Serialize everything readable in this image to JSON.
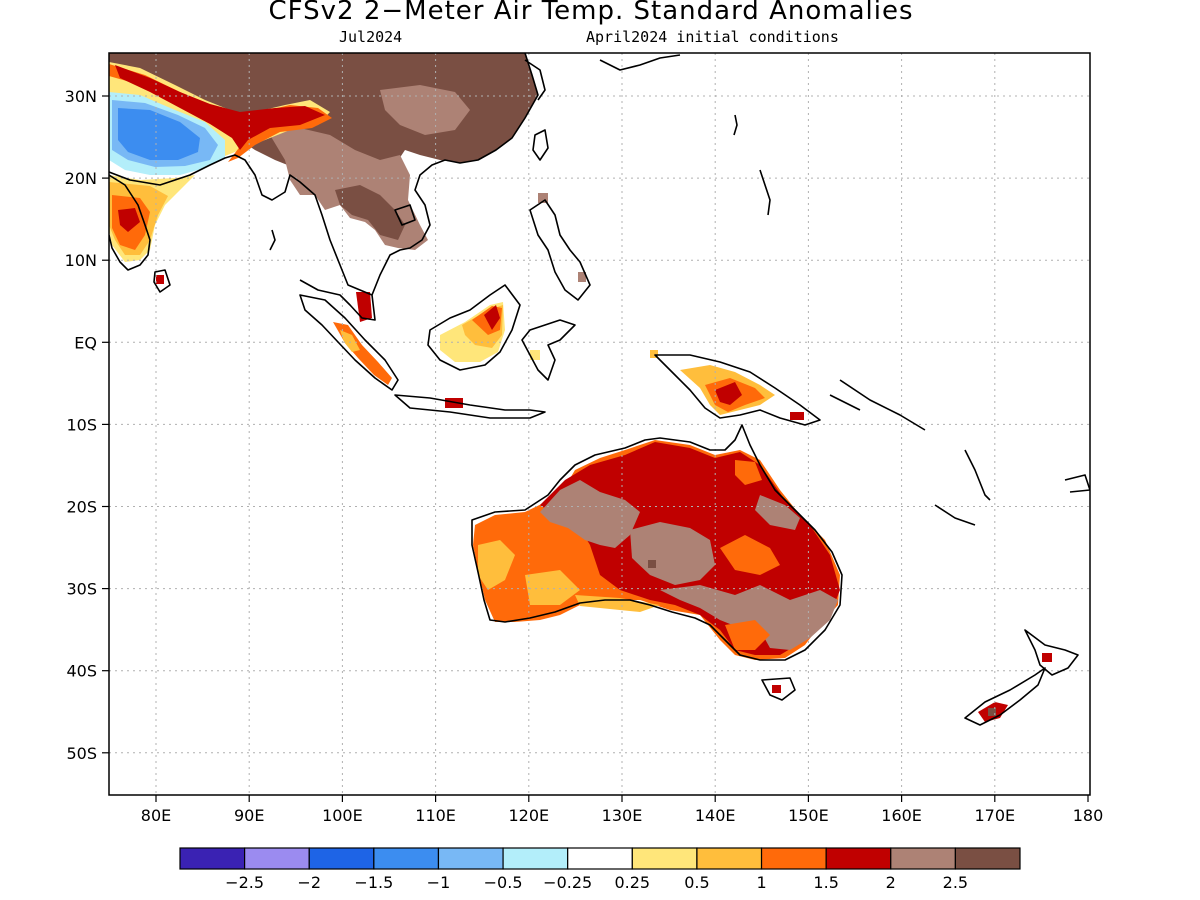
{
  "title": "CFSv2 2−Meter Air Temp. Standard Anomalies",
  "valid_month": "Jul2024",
  "initial_conditions": "April2024 initial conditions",
  "lat_ticks": [
    "30N",
    "20N",
    "10N",
    "EQ",
    "10S",
    "20S",
    "30S",
    "40S",
    "50S"
  ],
  "lon_ticks": [
    "80E",
    "90E",
    "100E",
    "110E",
    "120E",
    "130E",
    "140E",
    "150E",
    "160E",
    "170E",
    "180"
  ],
  "colorbar": {
    "colors": [
      "#3a22b3",
      "#9b8bf0",
      "#1e64e6",
      "#3c8df0",
      "#78b8f5",
      "#b3eefa",
      "#ffffff",
      "#ffe67a",
      "#ffbe3c",
      "#ff6a0a",
      "#c00000",
      "#ad8275",
      "#7a4f43"
    ],
    "labels": [
      "−2.5",
      "−2",
      "−1.5",
      "−1",
      "−0.5",
      "−0.25",
      "0.25",
      "0.5",
      "1",
      "1.5",
      "2",
      "2.5"
    ]
  },
  "regions": [
    {
      "name": "china-mainland-anomaly",
      "level": "2.5",
      "color": "#7a4f43"
    },
    {
      "name": "indochina-anomaly",
      "level": "2 to 2.5",
      "color": "#ad8275"
    },
    {
      "name": "northwest-india-cold-anomaly",
      "level": "-1.5 to -1",
      "color": "#3c8df0"
    },
    {
      "name": "india-warm-anomaly",
      "level": "0.5 to 1.5",
      "color": "#ff6a0a"
    },
    {
      "name": "borneo-anomaly",
      "level": "0.5 to 2",
      "color": "#ffbe3c"
    },
    {
      "name": "sumatra-anomaly",
      "level": "1 to 1.5",
      "color": "#ff6a0a"
    },
    {
      "name": "new-guinea-anomaly",
      "level": "1 to 2",
      "color": "#ff6a0a"
    },
    {
      "name": "australia-north-anomaly",
      "level": "2",
      "color": "#c00000"
    },
    {
      "name": "australia-west-anomaly",
      "level": "1 to 1.5",
      "color": "#ff6a0a"
    },
    {
      "name": "australia-central-anomaly",
      "level": "2.5",
      "color": "#ad8275"
    },
    {
      "name": "new-zealand-anomaly",
      "level": "2",
      "color": "#c00000"
    }
  ]
}
